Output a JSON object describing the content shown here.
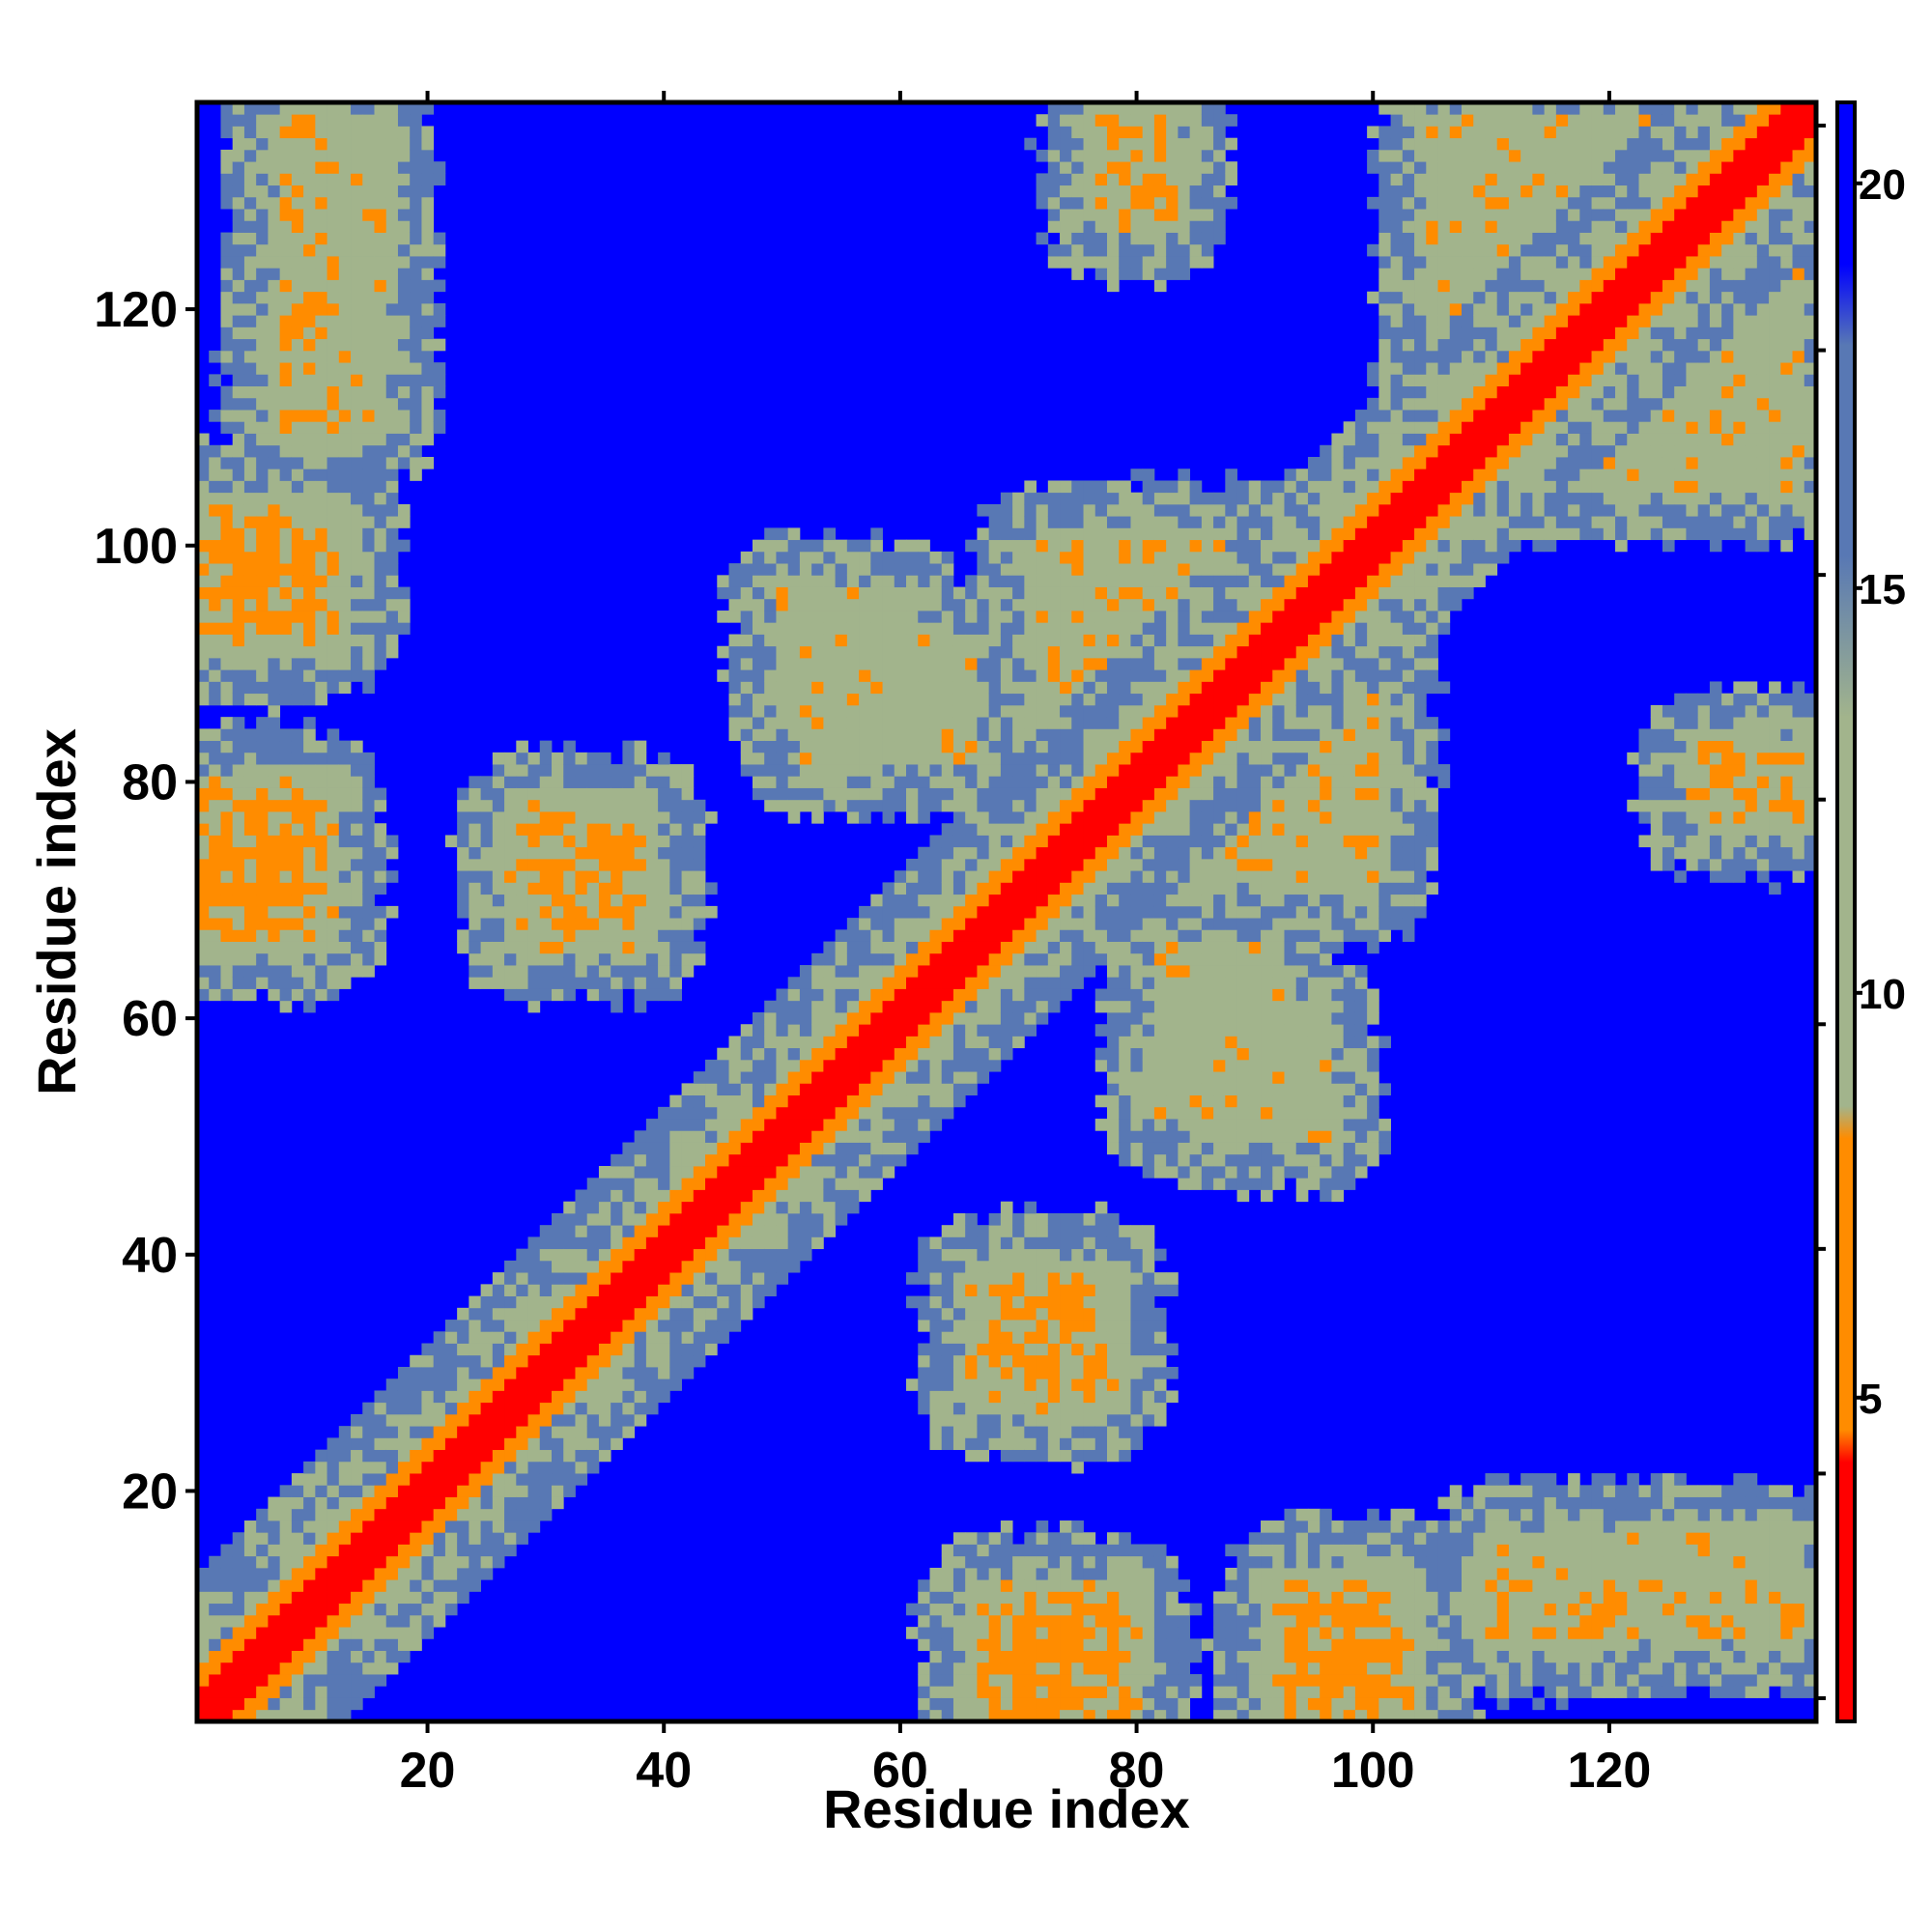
{
  "chart_data": {
    "type": "heatmap",
    "title": "",
    "xlabel": "Residue index",
    "ylabel": "Residue index",
    "n_residues": 137,
    "xlim": [
      1,
      137
    ],
    "ylim": [
      1,
      137
    ],
    "x_ticks": [
      20,
      40,
      60,
      80,
      100,
      120
    ],
    "y_ticks": [
      20,
      40,
      60,
      80,
      100,
      120
    ],
    "colorbar": {
      "ticks": [
        5,
        10,
        15,
        20
      ],
      "range": [
        1,
        21
      ],
      "colors": [
        "#ff0000",
        "#ff8c00",
        "#a2b48c",
        "#5878b4",
        "#0000ff"
      ]
    },
    "diagonal_band": {
      "red_width": 2,
      "orange_width": 4,
      "green_width": 12
    },
    "contact_regions": [
      {
        "x": [
          1,
          12
        ],
        "y": [
          93,
          102
        ],
        "value": 8
      },
      {
        "x": [
          1,
          10
        ],
        "y": [
          68,
          78
        ],
        "value": 7
      },
      {
        "x": [
          30,
          37
        ],
        "y": [
          68,
          76
        ],
        "value": 7
      },
      {
        "x": [
          78,
          82
        ],
        "y": [
          128,
          136
        ],
        "value": 8
      },
      {
        "x": [
          68,
          76
        ],
        "y": [
          2,
          10
        ],
        "value": 7
      },
      {
        "x": [
          93,
          102
        ],
        "y": [
          1,
          10
        ],
        "value": 7
      },
      {
        "x": [
          68,
          76
        ],
        "y": [
          29,
          36
        ],
        "value": 7
      },
      {
        "x": [
          130,
          136
        ],
        "y": [
          77,
          80
        ],
        "value": 9
      },
      {
        "x": [
          8,
          12
        ],
        "y": [
          110,
          136
        ],
        "value": 9
      },
      {
        "x": [
          50,
          60
        ],
        "y": [
          85,
          96
        ],
        "value": 10
      },
      {
        "x": [
          82,
          92
        ],
        "y": [
          52,
          66
        ],
        "value": 10
      },
      {
        "x": [
          110,
          136
        ],
        "y": [
          9,
          16
        ],
        "value": 10
      },
      {
        "x": [
          105,
          135
        ],
        "y": [
          108,
          136
        ],
        "value": 10
      },
      {
        "x": [
          78,
          100
        ],
        "y": [
          72,
          100
        ],
        "value": 9
      }
    ]
  }
}
